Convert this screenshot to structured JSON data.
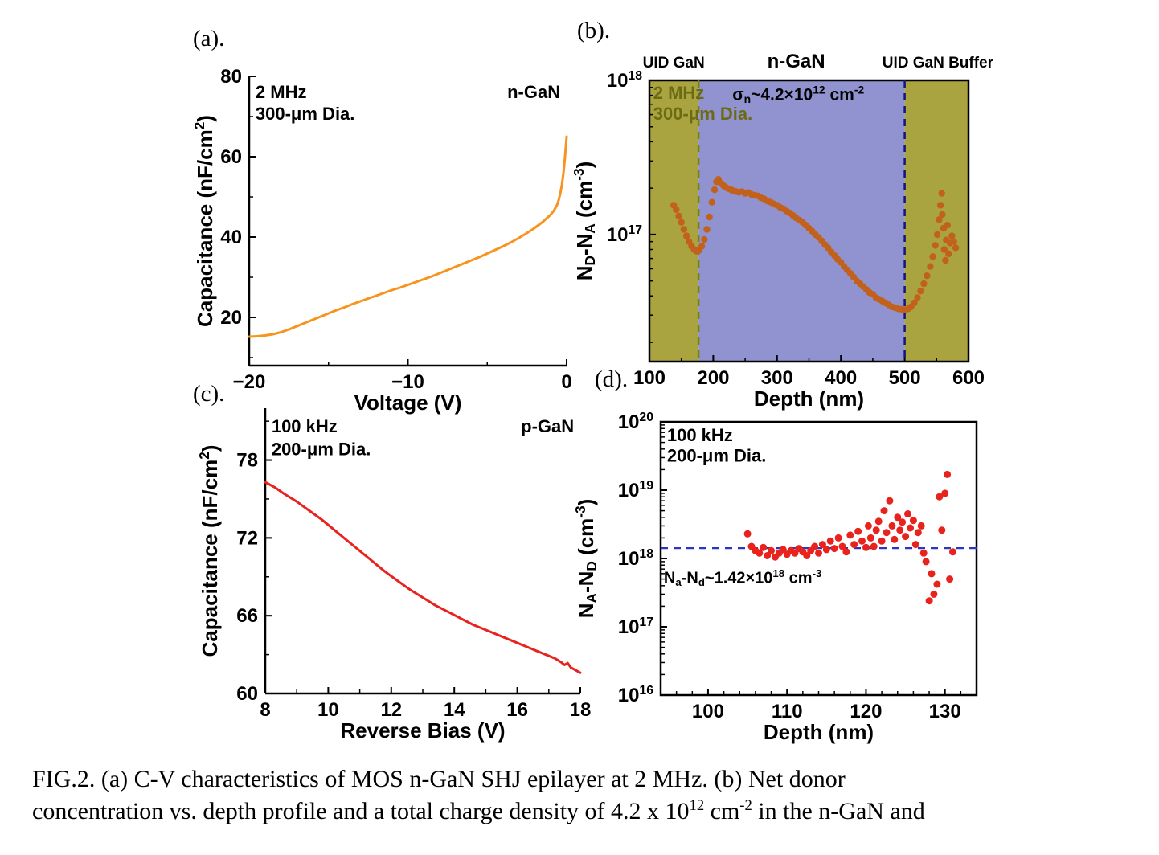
{
  "figure": {
    "caption": {
      "segments": [
        {
          "t": "FIG.2. (a) C-V characteristics of MOS n-GaN SHJ epilayer at 2 MHz. (b) Net donor"
        },
        {
          "br": true
        },
        {
          "t": "concentration vs. depth profile and a total charge density of 4.2 x 10"
        },
        {
          "t": "12",
          "sup": true
        },
        {
          "t": " cm"
        },
        {
          "t": "-2",
          "sup": true
        },
        {
          "t": " in the n-GaN and"
        }
      ]
    }
  },
  "chart_data": [
    {
      "id": "a",
      "type": "line",
      "panel_label": "(a).",
      "xlabel": "Voltage (V)",
      "ylabel": [
        {
          "t": "Capacitance (nF/cm"
        },
        {
          "t": "2",
          "sup": true
        },
        {
          "t": ")"
        }
      ],
      "xlim": [
        -20,
        0
      ],
      "ylim": [
        8,
        80
      ],
      "xticks": [
        -20,
        -10,
        0
      ],
      "yticks": [
        20,
        40,
        60,
        80
      ],
      "xminor": 5,
      "yminor": 10,
      "frame": false,
      "annotations": [
        {
          "text": "2 MHz",
          "fx": 0.02,
          "fy": 0.075,
          "size": 22
        },
        {
          "text": "300-μm Dia.",
          "fx": 0.02,
          "fy": 0.15,
          "size": 22
        },
        {
          "text": "n-GaN",
          "fx": 0.98,
          "fy": 0.075,
          "anchor": "end",
          "size": 22
        }
      ],
      "series": [
        {
          "name": "C-V n-GaN 2 MHz",
          "color": "#F7941D",
          "x": [
            -20,
            -19.5,
            -19,
            -18.5,
            -18,
            -17.5,
            -17,
            -16.5,
            -16,
            -15.5,
            -15,
            -14.5,
            -14,
            -13.5,
            -13,
            -12.5,
            -12,
            -11.5,
            -11,
            -10.5,
            -10,
            -9.5,
            -9,
            -8.5,
            -8,
            -7.5,
            -7,
            -6.5,
            -6,
            -5.5,
            -5,
            -4.5,
            -4,
            -3.5,
            -3,
            -2.5,
            -2,
            -1.5,
            -1,
            -0.8,
            -0.6,
            -0.5,
            -0.4,
            -0.3,
            -0.2,
            -0.1,
            -0.05,
            0
          ],
          "y": [
            15.2,
            15.3,
            15.5,
            15.8,
            16.3,
            17.0,
            17.8,
            18.6,
            19.4,
            20.2,
            21.0,
            21.8,
            22.5,
            23.3,
            24.0,
            24.7,
            25.4,
            26.1,
            26.8,
            27.4,
            28.1,
            28.8,
            29.5,
            30.2,
            31.0,
            31.8,
            32.6,
            33.4,
            34.2,
            35.0,
            35.9,
            36.8,
            37.7,
            38.7,
            39.8,
            41.0,
            42.3,
            43.8,
            45.6,
            46.6,
            48.0,
            49.2,
            50.8,
            53.0,
            56.0,
            60.0,
            62.5,
            65.0
          ]
        }
      ]
    },
    {
      "id": "b",
      "type": "scatter",
      "panel_label": "(b).",
      "xlabel": "Depth (nm)",
      "ylabel": [
        {
          "t": "N"
        },
        {
          "t": "D",
          "sub": true
        },
        {
          "t": "-N"
        },
        {
          "t": "A",
          "sub": true
        },
        {
          "t": " (cm"
        },
        {
          "t": "-3",
          "sup": true
        },
        {
          "t": ")"
        }
      ],
      "xlim": [
        100,
        600
      ],
      "ylim": [
        1.5e+16,
        1e+18
      ],
      "yscale": "log",
      "xticks": [
        100,
        200,
        300,
        400,
        500,
        600
      ],
      "yticks": [
        17,
        18
      ],
      "xminor": 50,
      "frame": true,
      "regions": [
        {
          "label": "UID GaN",
          "x0": 100,
          "x1": 177,
          "color": "#a9a440"
        },
        {
          "label": "n-GaN",
          "x0": 177,
          "x1": 500,
          "color": "#9093d0"
        },
        {
          "label": "UID GaN Buffer",
          "x0": 500,
          "x1": 600,
          "color": "#a9a440"
        }
      ],
      "vlines": [
        {
          "x": 177,
          "color": "#7d7d0a",
          "dash": true
        },
        {
          "x": 500,
          "color": "#15157d",
          "dash": true
        }
      ],
      "toplabels": [
        {
          "text": "UID GaN",
          "x": 138,
          "size": 19
        },
        {
          "text": "n-GaN",
          "x": 330,
          "size": 24
        },
        {
          "text": "UID GaN Buffer",
          "x": 552,
          "size": 19
        }
      ],
      "annotations": [
        {
          "text": "2 MHz",
          "fx": 0.012,
          "fy": 0.065,
          "size": 22,
          "color": "#6b6b14"
        },
        {
          "text": "300-μm Dia.",
          "fx": 0.012,
          "fy": 0.14,
          "size": 22,
          "color": "#6b6b14"
        },
        {
          "segs": [
            {
              "t": "σ"
            },
            {
              "t": "n",
              "sub": true
            },
            {
              "t": "~4.2×10"
            },
            {
              "t": "12",
              "sup": true
            },
            {
              "t": " cm"
            },
            {
              "t": "-2",
              "sup": true
            }
          ],
          "fx": 0.26,
          "fy": 0.07,
          "size": 21
        }
      ],
      "series": [
        {
          "name": "ND-NA depth profile",
          "color": "#c2611c",
          "r": 4.2,
          "x": [
            138,
            142,
            146,
            150,
            154,
            158,
            162,
            166,
            170,
            174,
            178,
            182,
            186,
            190,
            194,
            198,
            202,
            205,
            208,
            212,
            216,
            220,
            224,
            228,
            232,
            236,
            240,
            245,
            250,
            255,
            260,
            265,
            270,
            275,
            280,
            285,
            290,
            295,
            300,
            305,
            310,
            315,
            320,
            325,
            330,
            335,
            340,
            345,
            350,
            355,
            360,
            365,
            370,
            375,
            380,
            385,
            390,
            395,
            400,
            405,
            410,
            415,
            420,
            425,
            430,
            435,
            440,
            445,
            450,
            455,
            460,
            465,
            470,
            475,
            480,
            485,
            490,
            495,
            500,
            505,
            510,
            515,
            520,
            525,
            530,
            535,
            540,
            544,
            548,
            551,
            554,
            556,
            558,
            559,
            561,
            562,
            564,
            565,
            567,
            569,
            571,
            574,
            577,
            580
          ],
          "y": [
            1.55e+17,
            1.45e+17,
            1.32e+17,
            1.2e+17,
            1.08e+17,
            9.8e+16,
            9e+16,
            8.4e+16,
            8e+16,
            7.8e+16,
            7.9e+16,
            8.4e+16,
            9.3e+16,
            1.08e+17,
            1.3e+17,
            1.62e+17,
            1.95e+17,
            2.2e+17,
            2.28e+17,
            2.15e+17,
            2.08e+17,
            2.02e+17,
            1.98e+17,
            1.95e+17,
            1.92e+17,
            1.9e+17,
            1.88e+17,
            1.9e+17,
            1.85e+17,
            1.87e+17,
            1.82e+17,
            1.8e+17,
            1.78e+17,
            1.73e+17,
            1.7e+17,
            1.65e+17,
            1.62e+17,
            1.58e+17,
            1.55e+17,
            1.5e+17,
            1.47e+17,
            1.42e+17,
            1.38e+17,
            1.33e+17,
            1.28e+17,
            1.24e+17,
            1.2e+17,
            1.15e+17,
            1.1e+17,
            1.05e+17,
            1e+17,
            9.6e+16,
            9.1e+16,
            8.6e+16,
            8.2e+16,
            7.7e+16,
            7.3e+16,
            6.9e+16,
            6.6e+16,
            6.2e+16,
            5.9e+16,
            5.6e+16,
            5.3e+16,
            5e+16,
            4.8e+16,
            4.6e+16,
            4.4e+16,
            4.2e+16,
            4.1e+16,
            3.9e+16,
            3.8e+16,
            3.7e+16,
            3.6e+16,
            3.5e+16,
            3.4e+16,
            3.35e+16,
            3.3e+16,
            3.28e+16,
            3.25e+16,
            3.3e+16,
            3.4e+16,
            3.6e+16,
            3.9e+16,
            4.3e+16,
            4.8e+16,
            5.4e+16,
            6.2e+16,
            7.2e+16,
            8.5e+16,
            1e+17,
            1.25e+17,
            1.55e+17,
            1.85e+17,
            1.35e+17,
            1.1e+17,
            8e+16,
            6.8e+16,
            9.2e+16,
            1.15e+17,
            7.5e+16,
            8.8e+16,
            9.8e+16,
            9e+16,
            8.2e+16
          ]
        }
      ]
    },
    {
      "id": "c",
      "type": "line",
      "panel_label": "(c).",
      "xlabel": "Reverse Bias (V)",
      "ylabel": [
        {
          "t": "Capacitance (nF/cm"
        },
        {
          "t": "2",
          "sup": true
        },
        {
          "t": ")"
        }
      ],
      "xlim": [
        8,
        18
      ],
      "ylim": [
        60,
        82
      ],
      "xticks": [
        8,
        10,
        12,
        14,
        16,
        18
      ],
      "yticks": [
        60,
        66,
        72,
        78
      ],
      "xminor": 1,
      "yminor": 3,
      "frame": false,
      "annotations": [
        {
          "text": "100 kHz",
          "fx": 0.02,
          "fy": 0.085,
          "size": 22
        },
        {
          "text": "200-μm Dia.",
          "fx": 0.02,
          "fy": 0.165,
          "size": 22
        },
        {
          "text": "p-GaN",
          "fx": 0.98,
          "fy": 0.085,
          "anchor": "end",
          "size": 22
        }
      ],
      "series": [
        {
          "name": "C-V p-GaN 100 kHz",
          "color": "#e8231e",
          "x": [
            8,
            8.3,
            8.6,
            9,
            9.4,
            9.8,
            10.2,
            10.6,
            11,
            11.4,
            11.8,
            12.2,
            12.6,
            13,
            13.4,
            13.8,
            14.2,
            14.6,
            15,
            15.4,
            15.8,
            16.2,
            16.6,
            17,
            17.2,
            17.4,
            17.5,
            17.6,
            17.7,
            18
          ],
          "y": [
            76.3,
            75.9,
            75.4,
            74.8,
            74.1,
            73.4,
            72.6,
            71.8,
            71.0,
            70.2,
            69.4,
            68.7,
            68.0,
            67.4,
            66.8,
            66.3,
            65.8,
            65.3,
            64.9,
            64.5,
            64.1,
            63.7,
            63.3,
            62.9,
            62.7,
            62.4,
            62.2,
            62.35,
            62.0,
            61.6
          ]
        }
      ]
    },
    {
      "id": "d",
      "type": "scatter",
      "panel_label": "(d).",
      "xlabel": "Depth (nm)",
      "ylabel": [
        {
          "t": "N"
        },
        {
          "t": "A",
          "sub": true
        },
        {
          "t": "-N"
        },
        {
          "t": "D",
          "sub": true
        },
        {
          "t": " (cm"
        },
        {
          "t": "-3",
          "sup": true
        },
        {
          "t": ")"
        }
      ],
      "xlim": [
        94,
        134
      ],
      "ylim": [
        1e+16,
        1e+20
      ],
      "yscale": "log",
      "xticks": [
        100,
        110,
        120,
        130
      ],
      "yticks": [
        16,
        17,
        18,
        19,
        20
      ],
      "xminor": 2,
      "frame": true,
      "hlines": [
        {
          "y": 1.42e+18,
          "color": "#2a35c0",
          "dash": true
        }
      ],
      "annotations": [
        {
          "text": "100 kHz",
          "fx": 0.02,
          "fy": 0.07,
          "size": 22
        },
        {
          "text": "200-μm Dia.",
          "fx": 0.02,
          "fy": 0.145,
          "size": 22
        },
        {
          "segs": [
            {
              "t": "N"
            },
            {
              "t": "a",
              "sub": true
            },
            {
              "t": "-N"
            },
            {
              "t": "d",
              "sub": true
            },
            {
              "t": "~1.42×10"
            },
            {
              "t": "18",
              "sup": true
            },
            {
              "t": " cm"
            },
            {
              "t": "-3",
              "sup": true
            }
          ],
          "fx": 0.01,
          "fy": 0.59,
          "size": 20
        }
      ],
      "series": [
        {
          "name": "NA-ND depth profile",
          "color": "#e8231e",
          "r": 4.5,
          "x": [
            105,
            105.5,
            106,
            106.5,
            107,
            107.5,
            108,
            108.5,
            109,
            109.5,
            110,
            110.5,
            111,
            111.5,
            112,
            112.5,
            113,
            113.5,
            114,
            114.5,
            115,
            115.5,
            116,
            116.5,
            117,
            117.5,
            118,
            118.5,
            119,
            119.5,
            120,
            120.3,
            120.6,
            121,
            121.3,
            121.6,
            122,
            122.3,
            122.6,
            123,
            123.3,
            123.6,
            124,
            124.3,
            124.6,
            125,
            125.3,
            125.6,
            126,
            126.3,
            126.6,
            127,
            127.3,
            127.6,
            128,
            128.3,
            128.6,
            129,
            129.3,
            129.6,
            130,
            130.3,
            130.6,
            131
          ],
          "y": [
            2.3e+18,
            1.5e+18,
            1.3e+18,
            1.2e+18,
            1.45e+18,
            1.1e+18,
            1.3e+18,
            1.05e+18,
            1.2e+18,
            1.35e+18,
            1.15e+18,
            1.3e+18,
            1.2e+18,
            1.4e+18,
            1.25e+18,
            1.1e+18,
            1.3e+18,
            1.5e+18,
            1.2e+18,
            1.6e+18,
            1.35e+18,
            1.8e+18,
            1.4e+18,
            2e+18,
            1.5e+18,
            1.25e+18,
            2.2e+18,
            1.6e+18,
            2.5e+18,
            1.8e+18,
            1.45e+18,
            3e+18,
            2e+18,
            1.5e+18,
            2.6e+18,
            3.5e+18,
            1.8e+18,
            5e+18,
            2.4e+18,
            7e+18,
            3e+18,
            1.9e+18,
            4e+18,
            2.6e+18,
            3.4e+18,
            2.1e+18,
            4.5e+18,
            2.8e+18,
            3.6e+18,
            1.6e+18,
            2.4e+18,
            3e+18,
            1.2e+18,
            9e+17,
            2.4e+17,
            6e+17,
            3e+17,
            4.2e+17,
            8e+18,
            2.6e+18,
            9e+18,
            1.7e+19,
            5e+17,
            1.25e+18
          ]
        }
      ]
    }
  ]
}
